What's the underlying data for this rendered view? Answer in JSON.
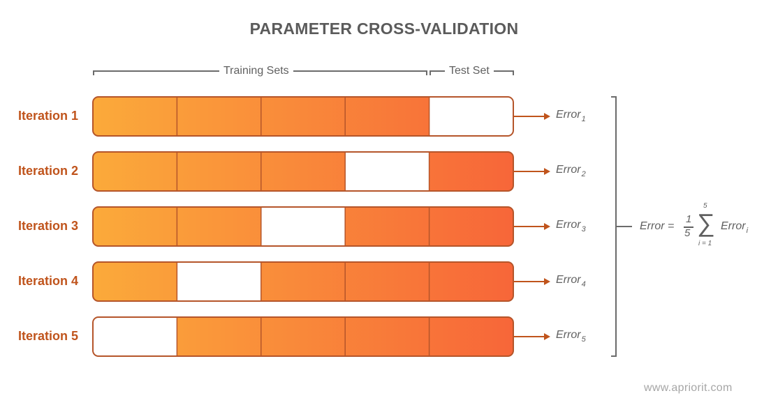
{
  "title": "PARAMETER CROSS-VALIDATION",
  "brackets": {
    "training": "Training Sets",
    "test": "Test Set"
  },
  "folds": 5,
  "iterations": [
    {
      "label": "Iteration 1",
      "test_fold": 5,
      "error": "Error",
      "error_sub": "1"
    },
    {
      "label": "Iteration 2",
      "test_fold": 4,
      "error": "Error",
      "error_sub": "2"
    },
    {
      "label": "Iteration 3",
      "test_fold": 3,
      "error": "Error",
      "error_sub": "3"
    },
    {
      "label": "Iteration 4",
      "test_fold": 2,
      "error": "Error",
      "error_sub": "4"
    },
    {
      "label": "Iteration 5",
      "test_fold": 1,
      "error": "Error",
      "error_sub": "5"
    }
  ],
  "formula": {
    "lhs": "Error =",
    "numerator": "1",
    "denominator": "5",
    "sum_upper": "5",
    "sum_lower": "i = 1",
    "sigma": "∑",
    "term": "Error",
    "term_sub": "i"
  },
  "colors": {
    "gradient_start": "#fbaa3a",
    "gradient_end": "#f76639",
    "border": "#b5552a",
    "label": "#c0541c",
    "text": "#606060",
    "line": "#6b6b6b"
  },
  "watermark": "www.apriorit.com"
}
